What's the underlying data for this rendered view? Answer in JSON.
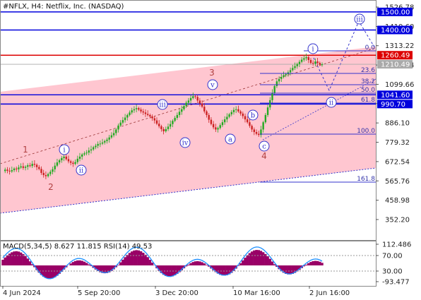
{
  "header": {
    "title": "#NFLX, H4:  Netflix, Inc. (NASDAQ)"
  },
  "indicator_title": "MACD(5,34,5) 8.627 11.815 RSI(14) 49.53",
  "chart_data": {
    "type": "candlestick",
    "title": "#NFLX, H4:  Netflix, Inc. (NASDAQ)",
    "y_ticks": [
      "1526.78",
      "1419.60",
      "1313.22",
      "1206.44",
      "1099.66",
      "992.88",
      "886.10",
      "779.32",
      "672.54",
      "565.76",
      "458.98",
      "352.20"
    ],
    "ylim": [
      352.2,
      1526.78
    ],
    "x_ticks": [
      "4 Jun 2024",
      "5 Sep 20:00",
      "3 Dec 20:00",
      "10 Mar 16:00",
      "2 Jun 16:00"
    ],
    "levels": [
      {
        "label": "1500.00",
        "value": 1500.0,
        "color": "#0000dd"
      },
      {
        "label": "1400.00",
        "value": 1400.0,
        "color": "#0000dd"
      },
      {
        "label": "1260.49",
        "value": 1260.49,
        "color": "#dd0000"
      },
      {
        "label": "1210.49",
        "value": 1210.49,
        "color": "#aaaaaa"
      },
      {
        "label": "1041.60",
        "value": 1041.6,
        "color": "#0000dd"
      },
      {
        "label": "990.70",
        "value": 990.7,
        "color": "#0000dd"
      }
    ],
    "fibonacci": [
      "0.0",
      "23.6",
      "38.2",
      "50.0",
      "61.8",
      "100.0",
      "161.8"
    ],
    "wave_labels": {
      "red": [
        "1",
        "2",
        "3",
        "4"
      ],
      "blue": [
        "i",
        "ii",
        "iii",
        "iv",
        "v",
        "a",
        "b",
        "c",
        "i",
        "ii",
        "iii"
      ]
    },
    "close_series": [
      620,
      628,
      622,
      618,
      625,
      634,
      630,
      640,
      646,
      638,
      644,
      652,
      648,
      660,
      655,
      642,
      632,
      610,
      598,
      592,
      604,
      616,
      630,
      650,
      668,
      680,
      692,
      700,
      686,
      674,
      666,
      660,
      670,
      688,
      700,
      712,
      718,
      722,
      734,
      740,
      752,
      760,
      770,
      772,
      778,
      786,
      794,
      806,
      818,
      830,
      850,
      872,
      888,
      902,
      916,
      930,
      944,
      956,
      962,
      968,
      960,
      950,
      944,
      936,
      930,
      922,
      912,
      900,
      882,
      868,
      852,
      840,
      852,
      866,
      880,
      898,
      914,
      930,
      948,
      962,
      980,
      998,
      1010,
      1024,
      1034,
      1030,
      1010,
      994,
      976,
      950,
      930,
      904,
      880,
      862,
      850,
      858,
      874,
      890,
      906,
      920,
      934,
      946,
      958,
      962,
      950,
      938,
      924,
      906,
      890,
      870,
      850,
      836,
      826,
      820,
      850,
      890,
      930,
      972,
      1012,
      1052,
      1090,
      1116,
      1130,
      1140,
      1150,
      1156,
      1166,
      1178,
      1190,
      1200,
      1212,
      1224,
      1236,
      1244,
      1250,
      1234,
      1218,
      1214,
      1226,
      1218,
      1208,
      1210
    ],
    "macd_ticks": [
      "112.486",
      "70.00",
      "30.00",
      "-93.477"
    ]
  }
}
